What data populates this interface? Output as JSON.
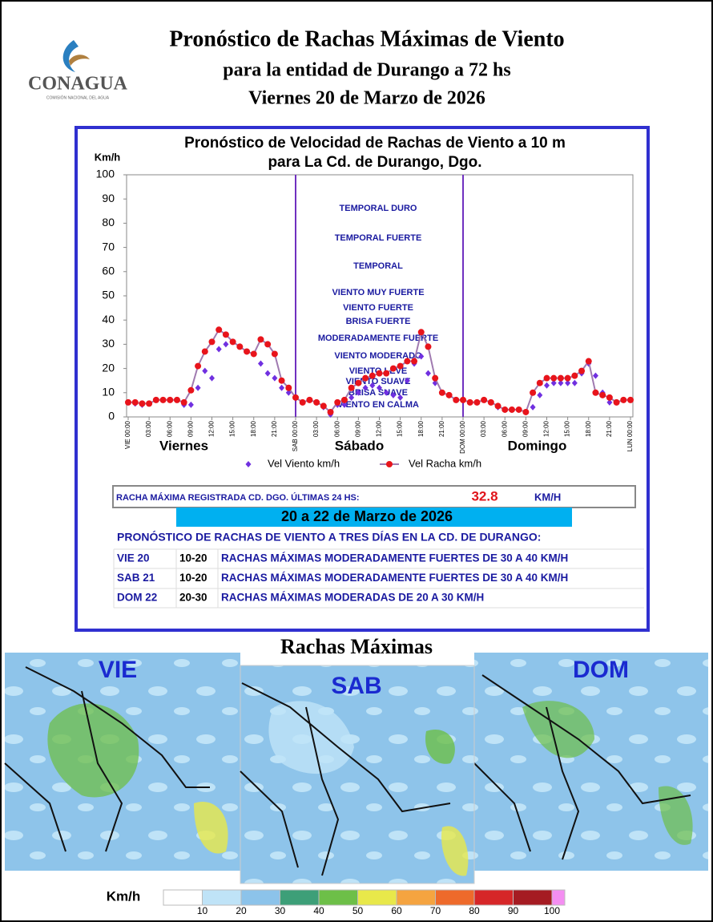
{
  "header": {
    "logo_text": "CONAGUA",
    "logo_subtext": "COMISIÓN NACIONAL DEL AGUA",
    "title_lines": [
      "Pronóstico de Rachas Máximas de Viento",
      "para la entidad de Durango a 72 hs",
      "Viernes 20 de Marzo de 2026"
    ]
  },
  "chart_data": {
    "type": "line",
    "title_lines": [
      "Pronóstico de Velocidad de Rachas de Viento a 10 m",
      "para La Cd. de Durango, Dgo."
    ],
    "y_label": "Km/h",
    "x": [
      0,
      1,
      2,
      3,
      4,
      5,
      6,
      7,
      8,
      9,
      10,
      11,
      12,
      13,
      14,
      15,
      16,
      17,
      18,
      19,
      20,
      21,
      22,
      23,
      24,
      25,
      26,
      27,
      28,
      29,
      30,
      31,
      32,
      33,
      34,
      35,
      36,
      37,
      38,
      39,
      40,
      41,
      42,
      43,
      44,
      45,
      46,
      47,
      48,
      49,
      50,
      51,
      52,
      53,
      54,
      55,
      56,
      57,
      58,
      59,
      60,
      61,
      62,
      63,
      64,
      65,
      66,
      67,
      68,
      69,
      70,
      71,
      72
    ],
    "series": [
      {
        "name": "Vel Viento km/h",
        "color": "#7030e0",
        "marker": "diamond",
        "values": [
          6,
          5.5,
          5,
          5.5,
          7,
          7,
          7,
          7,
          5,
          5,
          12,
          19,
          16,
          28,
          30,
          31,
          29,
          27,
          26,
          22,
          18,
          16,
          12,
          10,
          8,
          6,
          7,
          6,
          4,
          1,
          5,
          5,
          8,
          10,
          12,
          13,
          12,
          10,
          9,
          8,
          15,
          22,
          25,
          18,
          14,
          10,
          9,
          7,
          7,
          6,
          6,
          7,
          6,
          4,
          3,
          3,
          3,
          2,
          4,
          9,
          13,
          14,
          14,
          14,
          14,
          18,
          22,
          17,
          10,
          6,
          6,
          7,
          7
        ]
      },
      {
        "name": "Vel Racha km/h",
        "color": "#e8141b",
        "line_color": "#a07ab0",
        "marker": "circle",
        "values": [
          6,
          6,
          5.5,
          5.5,
          7,
          7,
          7,
          7,
          6,
          11,
          21,
          27,
          31,
          36,
          34,
          31,
          29,
          27,
          26,
          32,
          30,
          26,
          15,
          12,
          8,
          6,
          7,
          6,
          4.5,
          2,
          6,
          7,
          12,
          14,
          16,
          17,
          18,
          18,
          20,
          21,
          23,
          23,
          35,
          29,
          16,
          10,
          9,
          7,
          7,
          6,
          6,
          7,
          6,
          4.5,
          3,
          3,
          3,
          2,
          10,
          14,
          16,
          16,
          16,
          16,
          17,
          19,
          23,
          10,
          9,
          8,
          6,
          7,
          7
        ]
      }
    ],
    "xlim": [
      0,
      72
    ],
    "xticks": [
      {
        "value": 0,
        "label": "VIE 00:00"
      },
      {
        "value": 3,
        "label": "03:00"
      },
      {
        "value": 6,
        "label": "06:00"
      },
      {
        "value": 9,
        "label": "09:00"
      },
      {
        "value": 12,
        "label": "12:00"
      },
      {
        "value": 15,
        "label": "15:00"
      },
      {
        "value": 18,
        "label": "18:00"
      },
      {
        "value": 21,
        "label": "21:00"
      },
      {
        "value": 24,
        "label": "SAB 00:00"
      },
      {
        "value": 27,
        "label": "03:00"
      },
      {
        "value": 30,
        "label": "06:00"
      },
      {
        "value": 33,
        "label": "09:00"
      },
      {
        "value": 36,
        "label": "12:00"
      },
      {
        "value": 39,
        "label": "15:00"
      },
      {
        "value": 42,
        "label": "18:00"
      },
      {
        "value": 45,
        "label": "21:00"
      },
      {
        "value": 48,
        "label": "DOM 00:00"
      },
      {
        "value": 51,
        "label": "03:00"
      },
      {
        "value": 54,
        "label": "06:00"
      },
      {
        "value": 57,
        "label": "09:00"
      },
      {
        "value": 60,
        "label": "12:00"
      },
      {
        "value": 63,
        "label": "15:00"
      },
      {
        "value": 66,
        "label": "18:00"
      },
      {
        "value": 69,
        "label": "21:00"
      },
      {
        "value": 72,
        "label": "LUN 00:00"
      }
    ],
    "ylim": [
      0,
      100
    ],
    "yticks": [
      0,
      10,
      20,
      30,
      40,
      50,
      60,
      70,
      80,
      90,
      100
    ],
    "day_labels": [
      "Viernes",
      "Sábado",
      "Domingo"
    ],
    "zone_labels": [
      "TEMPORAL DURO",
      "TEMPORAL FUERTE",
      "TEMPORAL",
      "VIENTO MUY FUERTE",
      "VIENTO FUERTE",
      "BRISA FUERTE",
      "MODERADAMENTE FUERTE",
      "VIENTO MODERADO",
      "VIENTO LEVE",
      "VIENTO SUAVE",
      "BRISA SUAVE",
      "VIENTO EN CALMA"
    ],
    "separator_color": "#7030c0",
    "legend": "bottom"
  },
  "summary": {
    "label": "RACHA MÁXIMA REGISTRADA CD. DGO. ÚLTIMAS 24 HS:",
    "value": "32.8",
    "unit": "KM/H"
  },
  "forecast": {
    "date_range": "20 a 22 de Marzo de 2026",
    "heading": "PRONÓSTICO DE RACHAS DE VIENTO A TRES DÍAS EN LA CD. DE DURANGO:",
    "rows": [
      [
        "VIE 20",
        "10-20",
        "RACHAS MÁXIMAS MODERADAMENTE FUERTES  DE 30 A 40 KM/H"
      ],
      [
        "SAB 21",
        "10-20",
        "RACHAS MÁXIMAS MODERADAMENTE FUERTES  DE 30 A 40 KM/H"
      ],
      [
        "DOM 22",
        "20-30",
        "RACHAS MÁXIMAS MODERADAS DE 20 A 30 KM/H"
      ]
    ]
  },
  "maps": {
    "title": "Rachas Máximas",
    "panels": [
      "VIE",
      "SAB",
      "DOM"
    ]
  },
  "colorbar": {
    "unit": "Km/h",
    "colors": [
      "#ffffff",
      "#bfe3f7",
      "#8cc3ea",
      "#3d9f78",
      "#6dbf48",
      "#e8e84a",
      "#f5a440",
      "#ee6a2b",
      "#d62628",
      "#a51b22",
      "#f48ef2"
    ],
    "ticks": [
      10,
      20,
      30,
      40,
      50,
      60,
      70,
      80,
      90,
      100
    ]
  }
}
